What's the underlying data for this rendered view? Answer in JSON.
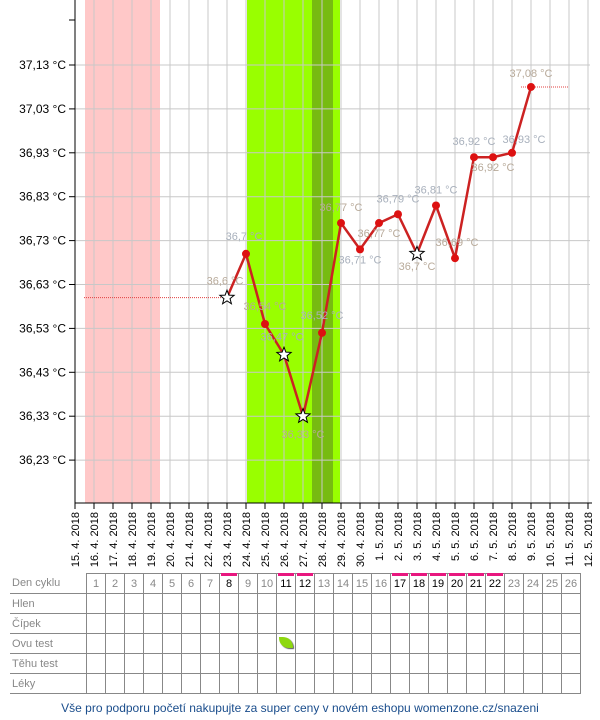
{
  "chart_data": {
    "type": "line",
    "y_ticks": [
      "37,13 °C",
      "37,03 °C",
      "36,93 °C",
      "36,83 °C",
      "36,73 °C",
      "36,63 °C",
      "36,53 °C",
      "36,43 °C",
      "36,33 °C",
      "36,23 °C"
    ],
    "y_tick_values": [
      37.13,
      37.03,
      36.93,
      36.83,
      36.73,
      36.63,
      36.53,
      36.43,
      36.33,
      36.23
    ],
    "x_ticks": [
      "15. 4. 2018",
      "16. 4. 2018",
      "17. 4. 2018",
      "18. 4. 2018",
      "19. 4. 2018",
      "20. 4. 2018",
      "21. 4. 2018",
      "22. 4. 2018",
      "23. 4. 2018",
      "24. 4. 2018",
      "25. 4. 2018",
      "26. 4. 2018",
      "27. 4. 2018",
      "28. 4. 2018",
      "29. 4. 2018",
      "30. 4. 2018",
      "1. 5. 2018",
      "2. 5. 2018",
      "3. 5. 2018",
      "4. 5. 2018",
      "5. 5. 2018",
      "6. 5. 2018",
      "7. 5. 2018",
      "8. 5. 2018",
      "9. 5. 2018",
      "10. 5. 2018",
      "11. 5. 2018",
      "12. 5. 2018"
    ],
    "series": [
      {
        "points": [
          {
            "x": "23. 4. 2018",
            "y": 36.6,
            "label": "36,6 °C",
            "star": true
          },
          {
            "x": "24. 4. 2018",
            "y": 36.7,
            "label": "36,7 °C",
            "star": false
          },
          {
            "x": "25. 4. 2018",
            "y": 36.54,
            "label": "36,54 °C",
            "star": false
          },
          {
            "x": "26. 4. 2018",
            "y": 36.47,
            "label": "36,47 °C",
            "star": true
          },
          {
            "x": "27. 4. 2018",
            "y": 36.33,
            "label": "36,33 °C",
            "star": true
          },
          {
            "x": "28. 4. 2018",
            "y": 36.52,
            "label": "36,52 °C",
            "star": false
          },
          {
            "x": "29. 4. 2018",
            "y": 36.77,
            "label": "36,77 °C",
            "star": false
          },
          {
            "x": "30. 4. 2018",
            "y": 36.71,
            "label": "36,71 °C",
            "star": false
          },
          {
            "x": "1. 5. 2018",
            "y": 36.77,
            "label": "36,77 °C",
            "star": false
          },
          {
            "x": "2. 5. 2018",
            "y": 36.79,
            "label": "36,79 °C",
            "star": false
          },
          {
            "x": "3. 5. 2018",
            "y": 36.7,
            "label": "36,7 °C",
            "star": true
          },
          {
            "x": "4. 5. 2018",
            "y": 36.81,
            "label": "36,81 °C",
            "star": false
          },
          {
            "x": "5. 5. 2018",
            "y": 36.69,
            "label": "36,69 °C",
            "star": false
          },
          {
            "x": "6. 5. 2018",
            "y": 36.92,
            "label": "36,92 °C",
            "star": false
          },
          {
            "x": "7. 5. 2018",
            "y": 36.92,
            "label": "36,92 °C",
            "star": false
          },
          {
            "x": "8. 5. 2018",
            "y": 36.93,
            "label": "36,93 °C",
            "star": false
          },
          {
            "x": "9. 5. 2018",
            "y": 37.08,
            "label": "37,08 °C",
            "star": false
          }
        ]
      }
    ],
    "coverlines": [
      {
        "from": "16. 4. 2018",
        "to": "23. 4. 2018",
        "y": 36.6
      },
      {
        "from": "9. 5. 2018",
        "to": "11. 5. 2018",
        "y": 37.08
      }
    ],
    "bands": [
      {
        "kind": "menstruation",
        "from": "16. 4. 2018",
        "to": "19. 4. 2018",
        "color": "#ffc8c8"
      },
      {
        "kind": "fertile",
        "from": "25. 4. 2018",
        "to": "29. 4. 2018",
        "color": "#99ff00"
      },
      {
        "kind": "ovulation",
        "from": "28. 4. 2018",
        "to": "28. 4. 2018",
        "color": "#77bb11"
      }
    ],
    "ylim": [
      36.13,
      37.2
    ],
    "grid": true,
    "line_color": "#cc2222"
  },
  "table": {
    "rows": [
      "Den cyklu",
      "Hlen",
      "Čípek",
      "Ovu test",
      "Těhu test",
      "Léky"
    ],
    "days": [
      "1",
      "2",
      "3",
      "4",
      "5",
      "6",
      "7",
      "8",
      "9",
      "10",
      "11",
      "12",
      "13",
      "14",
      "15",
      "16",
      "17",
      "18",
      "19",
      "20",
      "21",
      "22",
      "23",
      "24",
      "25",
      "26"
    ],
    "marked_days": [
      "8",
      "11",
      "12",
      "17",
      "18",
      "19",
      "20",
      "21",
      "22"
    ],
    "ovu_test_positive_day": "11"
  },
  "footer": "Vše pro podporu početí nakupujte za super ceny v novém eshopu womenzone.cz/snazeni"
}
